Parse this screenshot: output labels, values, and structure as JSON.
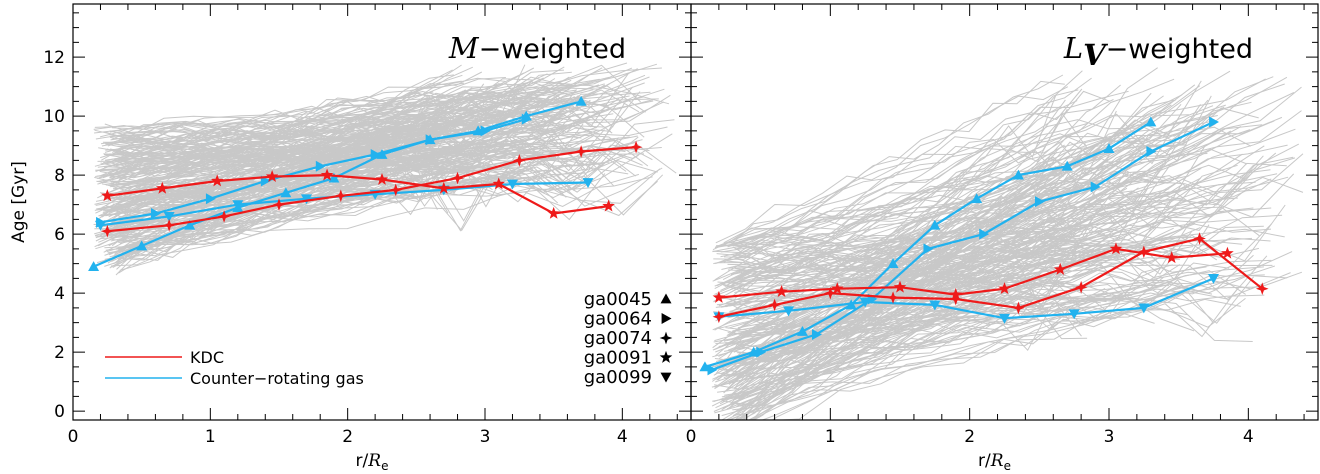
{
  "chart_data": [
    {
      "type": "line",
      "panel": "left",
      "title_symbol": "M",
      "title_rest": "−weighted",
      "xlabel": "r/R",
      "xlabel_sub": "e",
      "ylabel": "Age [Gyr]",
      "xlim": [
        0,
        4.5
      ],
      "ylim": [
        -0.3,
        13.8
      ],
      "x_ticks": [
        "0",
        "1",
        "2",
        "3",
        "4"
      ],
      "y_ticks": [
        "0",
        "2",
        "4",
        "6",
        "8",
        "10",
        "12"
      ],
      "background_band": {
        "name": "",
        "color": "#c8c8c8",
        "y_center": [
          7.2,
          9.8
        ],
        "y_spread": [
          1.5,
          1.2
        ],
        "x_range": [
          0.15,
          4.3
        ]
      },
      "series": [
        {
          "marker": "triangle-up",
          "color": "#22b2ee",
          "x": [
            0.15,
            0.5,
            0.85,
            1.2,
            1.55,
            1.9,
            2.25,
            2.6,
            2.95,
            3.3,
            3.7
          ],
          "y": [
            4.9,
            5.6,
            6.3,
            6.9,
            7.4,
            7.9,
            8.7,
            9.2,
            9.5,
            10.0,
            10.5
          ]
        },
        {
          "marker": "triangle-right",
          "color": "#22b2ee",
          "x": [
            0.2,
            0.6,
            1.0,
            1.4,
            1.8,
            2.2,
            2.6,
            3.0,
            3.3
          ],
          "y": [
            6.4,
            6.7,
            7.2,
            7.8,
            8.3,
            8.7,
            9.2,
            9.5,
            9.9
          ]
        },
        {
          "marker": "triangle-down",
          "color": "#22b2ee",
          "x": [
            0.2,
            0.7,
            1.2,
            1.7,
            2.2,
            2.7,
            3.2,
            3.75
          ],
          "y": [
            6.3,
            6.6,
            7.0,
            7.2,
            7.35,
            7.5,
            7.7,
            7.75
          ]
        },
        {
          "marker": "star4",
          "color": "#ee1a1a",
          "x": [
            0.25,
            0.7,
            1.1,
            1.5,
            1.95,
            2.35,
            2.8,
            3.25,
            3.7,
            4.1
          ],
          "y": [
            6.1,
            6.3,
            6.6,
            7.0,
            7.3,
            7.5,
            7.9,
            8.5,
            8.8,
            8.95
          ]
        },
        {
          "marker": "star",
          "color": "#ee1a1a",
          "x": [
            0.25,
            0.65,
            1.05,
            1.45,
            1.85,
            2.25,
            2.7,
            3.1,
            3.5,
            3.9
          ],
          "y": [
            7.3,
            7.55,
            7.8,
            7.95,
            8.0,
            7.85,
            7.55,
            7.7,
            6.7,
            6.95
          ]
        }
      ],
      "legend": [
        {
          "label": "KDC",
          "color": "#ee1a1a"
        },
        {
          "label": "Counter−rotating gas",
          "color": "#22b2ee"
        }
      ],
      "galaxy_legend": [
        {
          "label": "ga0045",
          "marker": "triangle-up"
        },
        {
          "label": "ga0064",
          "marker": "triangle-right"
        },
        {
          "label": "ga0074",
          "marker": "star4"
        },
        {
          "label": "ga0091",
          "marker": "star"
        },
        {
          "label": "ga0099",
          "marker": "triangle-down"
        }
      ]
    },
    {
      "type": "line",
      "panel": "right",
      "title_symbol": "L",
      "title_symbol_sub": "V",
      "title_rest": "−weighted",
      "xlabel": "r/R",
      "xlabel_sub": "e",
      "ylabel": "",
      "xlim": [
        0,
        4.5
      ],
      "ylim": [
        -0.3,
        13.8
      ],
      "x_ticks": [
        "0",
        "1",
        "2",
        "3",
        "4"
      ],
      "y_ticks": [],
      "background_band": {
        "name": "",
        "color": "#c8c8c8",
        "y_center": [
          2.5,
          7.5
        ],
        "y_spread": [
          2.2,
          2.5
        ],
        "x_range": [
          0.15,
          4.3
        ]
      },
      "series": [
        {
          "marker": "triangle-up",
          "color": "#22b2ee",
          "x": [
            0.1,
            0.45,
            0.8,
            1.15,
            1.45,
            1.75,
            2.05,
            2.35,
            2.7,
            3.0,
            3.3
          ],
          "y": [
            1.5,
            2.0,
            2.7,
            3.6,
            5.0,
            6.3,
            7.2,
            8.0,
            8.3,
            8.9,
            9.8
          ]
        },
        {
          "marker": "triangle-right",
          "color": "#22b2ee",
          "x": [
            0.15,
            0.5,
            0.9,
            1.3,
            1.7,
            2.1,
            2.5,
            2.9,
            3.3,
            3.75
          ],
          "y": [
            1.4,
            2.0,
            2.6,
            3.8,
            5.5,
            6.0,
            7.1,
            7.6,
            8.8,
            9.8
          ]
        },
        {
          "marker": "triangle-down",
          "color": "#22b2ee",
          "x": [
            0.2,
            0.7,
            1.25,
            1.75,
            2.25,
            2.75,
            3.25,
            3.75
          ],
          "y": [
            3.2,
            3.4,
            3.7,
            3.6,
            3.15,
            3.3,
            3.5,
            4.5
          ]
        },
        {
          "marker": "star4",
          "color": "#ee1a1a",
          "x": [
            0.2,
            0.6,
            1.0,
            1.45,
            1.9,
            2.35,
            2.8,
            3.25,
            3.65,
            4.1
          ],
          "y": [
            3.2,
            3.6,
            4.0,
            3.85,
            3.8,
            3.5,
            4.2,
            5.4,
            5.85,
            4.15
          ]
        },
        {
          "marker": "star",
          "color": "#ee1a1a",
          "x": [
            0.2,
            0.65,
            1.05,
            1.5,
            1.9,
            2.25,
            2.65,
            3.05,
            3.45,
            3.85
          ],
          "y": [
            3.85,
            4.05,
            4.15,
            4.2,
            3.95,
            4.15,
            4.8,
            5.5,
            5.2,
            5.35
          ]
        }
      ]
    }
  ]
}
